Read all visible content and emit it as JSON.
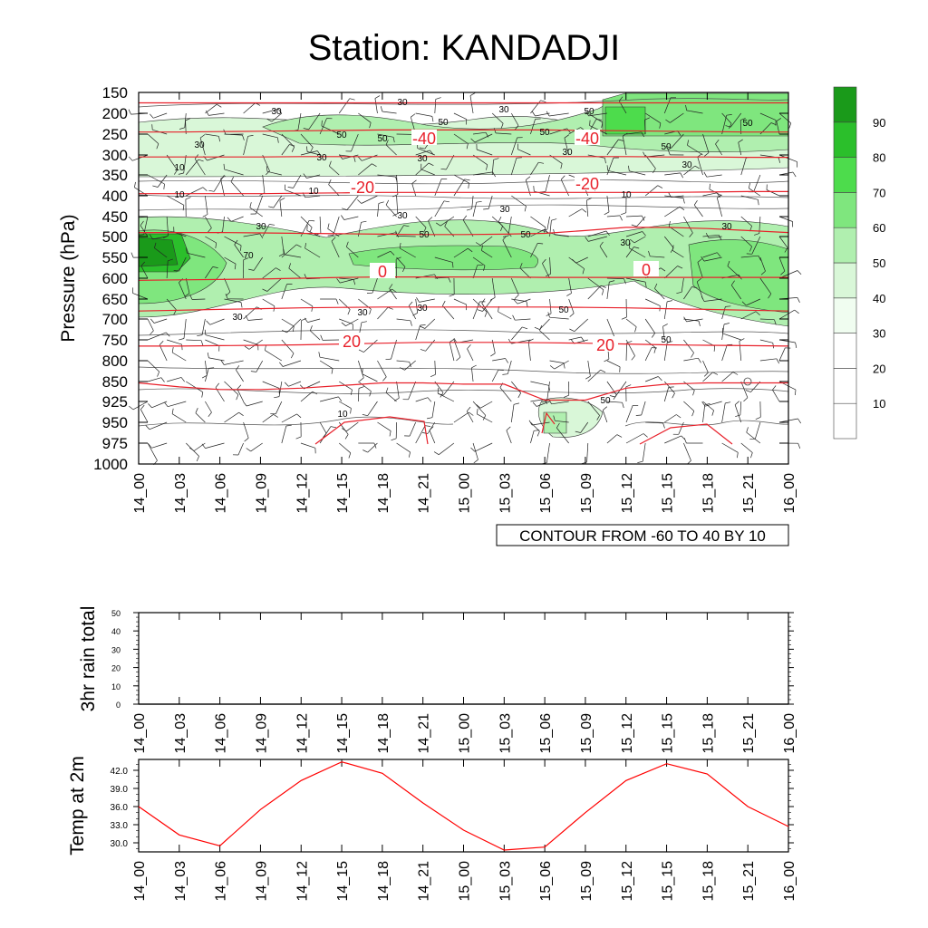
{
  "title": "Station: KANDADJI",
  "chart_data": [
    {
      "type": "heatmap",
      "subtype": "time-pressure cross-section (relative humidity fill, temperature contours, wind barbs)",
      "ylabel": "Pressure (hPa)",
      "xlabel": "",
      "x_ticks": [
        "14_00",
        "14_03",
        "14_06",
        "14_09",
        "14_12",
        "14_15",
        "14_18",
        "14_21",
        "15_00",
        "15_03",
        "15_06",
        "15_09",
        "15_12",
        "15_15",
        "15_18",
        "15_21",
        "16_00"
      ],
      "pressure_levels": [
        150,
        200,
        250,
        300,
        350,
        400,
        450,
        500,
        550,
        600,
        650,
        700,
        750,
        800,
        850,
        925,
        950,
        975,
        1000
      ],
      "y_tick_labels": [
        "150",
        "200",
        "250",
        "300",
        "350",
        "400",
        "450",
        "500",
        "550",
        "600",
        "650",
        "700",
        "750",
        "800",
        "850",
        "925",
        "950",
        "975",
        "1000"
      ],
      "fill_colorbar_labels": [
        "10",
        "20",
        "30",
        "40",
        "50",
        "60",
        "70",
        "80",
        "90"
      ],
      "fill_colors": [
        "#ffffff",
        "#ffffff",
        "#ffffff",
        "#f0fdf0",
        "#d9f7d8",
        "#b0efaf",
        "#7fe67e",
        "#4ddc4c",
        "#2bbf2b",
        "#1a9a1a"
      ],
      "contour_info": "CONTOUR FROM -60 TO 40 BY 10",
      "temperature_contours": [
        {
          "value": -50,
          "label": "",
          "levels_y": [
            175,
            175,
            175,
            175,
            175,
            175,
            175,
            175,
            175,
            175,
            175,
            175,
            175,
            175,
            175,
            175,
            175
          ]
        },
        {
          "value": -40,
          "label": "-40",
          "levels_y": [
            245,
            245,
            244,
            243,
            242,
            241,
            240,
            240,
            240,
            240,
            240,
            241,
            242,
            243,
            244,
            245,
            245
          ]
        },
        {
          "value": -30,
          "label": "",
          "levels_y": [
            305,
            305,
            305,
            305,
            304,
            304,
            304,
            304,
            304,
            304,
            304,
            304,
            304,
            305,
            305,
            306,
            306
          ]
        },
        {
          "value": -20,
          "label": "-20",
          "levels_y": [
            395,
            395,
            395,
            395,
            394,
            393,
            392,
            392,
            392,
            392,
            392,
            392,
            392,
            392,
            391,
            390,
            390
          ]
        },
        {
          "value": -10,
          "label": "",
          "levels_y": [
            490,
            490,
            490,
            491,
            492,
            493,
            494,
            495,
            495,
            494,
            492,
            485,
            477,
            477,
            480,
            485,
            490
          ]
        },
        {
          "value": 0,
          "label": "0",
          "levels_y": [
            605,
            604,
            603,
            602,
            600,
            598,
            597,
            597,
            597,
            597,
            598,
            598,
            598,
            598,
            598,
            598,
            598
          ]
        },
        {
          "value": 10,
          "label": "",
          "levels_y": [
            680,
            678,
            676,
            674,
            672,
            671,
            670,
            670,
            670,
            670,
            670,
            671,
            672,
            674,
            676,
            678,
            680
          ]
        },
        {
          "value": 20,
          "label": "20",
          "levels_y": [
            765,
            765,
            764,
            763,
            762,
            760,
            758,
            756,
            756,
            756,
            757,
            758,
            760,
            762,
            763,
            764,
            765
          ]
        },
        {
          "value": 30,
          "label": "",
          "levels_y": [
            855,
            870,
            880,
            880,
            875,
            865,
            855,
            855,
            860,
            860,
            920,
            920,
            875,
            860,
            855,
            855,
            855
          ]
        }
      ],
      "temperature_contour_labels": [
        "-40",
        "-40",
        "-20",
        "-20",
        "0",
        "0",
        "20",
        "20"
      ],
      "rh_contour_labels": [
        "10",
        "10",
        "10",
        "10",
        "10",
        "30",
        "30",
        "30",
        "30",
        "30",
        "30",
        "30",
        "30",
        "30",
        "30",
        "30",
        "30",
        "30",
        "30",
        "30",
        "30",
        "50",
        "50",
        "50",
        "50",
        "50",
        "50",
        "50",
        "50",
        "50",
        "50",
        "50",
        "50",
        "70"
      ]
    },
    {
      "type": "line",
      "ylabel": "3hr rain total",
      "xlabel": "",
      "x": [
        "14_00",
        "14_03",
        "14_06",
        "14_09",
        "14_12",
        "14_15",
        "14_18",
        "14_21",
        "15_00",
        "15_03",
        "15_06",
        "15_09",
        "15_12",
        "15_15",
        "15_18",
        "15_21",
        "16_00"
      ],
      "y_ticks": [
        "0",
        "10",
        "20",
        "30",
        "40",
        "50"
      ],
      "ylim": [
        0,
        50
      ],
      "values": [
        0,
        0,
        0,
        0,
        0,
        0,
        0,
        0,
        0,
        0,
        0,
        0,
        0,
        0,
        0,
        0,
        0
      ],
      "color": "#000000"
    },
    {
      "type": "line",
      "ylabel": "Temp at 2m",
      "xlabel": "",
      "x": [
        "14_00",
        "14_03",
        "14_06",
        "14_09",
        "14_12",
        "14_15",
        "14_18",
        "14_21",
        "15_00",
        "15_03",
        "15_06",
        "15_09",
        "15_12",
        "15_15",
        "15_18",
        "15_21",
        "16_00"
      ],
      "y_ticks": [
        "30.0",
        "33.0",
        "36.0",
        "39.0",
        "42.0"
      ],
      "ylim": [
        28.5,
        43.8
      ],
      "values": [
        36.0,
        31.3,
        29.5,
        35.5,
        40.3,
        43.4,
        41.5,
        36.6,
        32.1,
        28.8,
        29.3,
        35.0,
        40.3,
        43.1,
        41.4,
        36.0,
        32.7
      ],
      "color": "#ff0000"
    }
  ]
}
